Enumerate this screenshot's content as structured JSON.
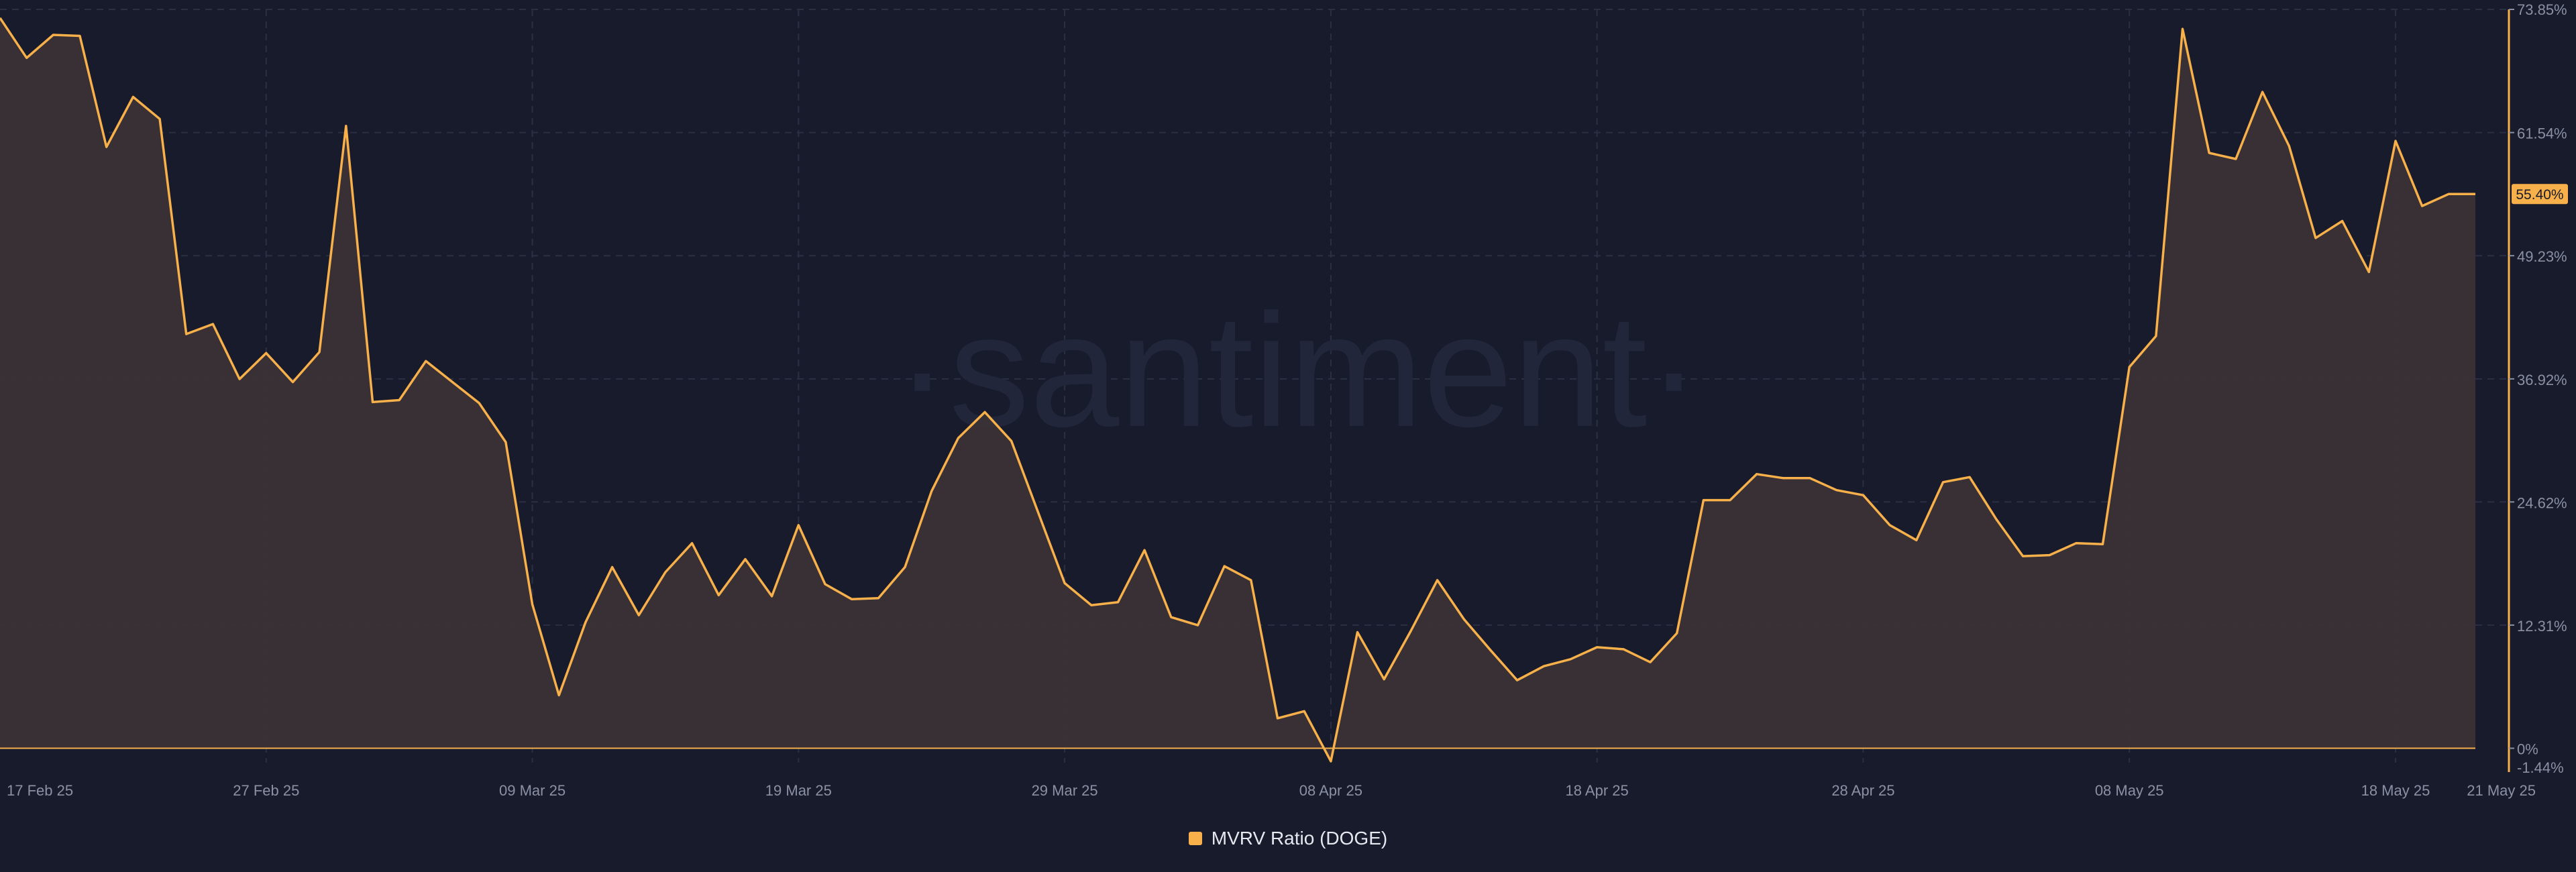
{
  "chart_data": {
    "type": "area",
    "watermark": "·santiment·",
    "x": [
      "2025-02-17",
      "2025-02-18",
      "2025-02-19",
      "2025-02-20",
      "2025-02-21",
      "2025-02-22",
      "2025-02-23",
      "2025-02-24",
      "2025-02-25",
      "2025-02-26",
      "2025-02-27",
      "2025-02-28",
      "2025-03-01",
      "2025-03-02",
      "2025-03-03",
      "2025-03-04",
      "2025-03-05",
      "2025-03-06",
      "2025-03-07",
      "2025-03-08",
      "2025-03-09",
      "2025-03-10",
      "2025-03-11",
      "2025-03-12",
      "2025-03-13",
      "2025-03-14",
      "2025-03-15",
      "2025-03-16",
      "2025-03-17",
      "2025-03-18",
      "2025-03-19",
      "2025-03-20",
      "2025-03-21",
      "2025-03-22",
      "2025-03-23",
      "2025-03-24",
      "2025-03-25",
      "2025-03-26",
      "2025-03-27",
      "2025-03-28",
      "2025-03-29",
      "2025-03-30",
      "2025-03-31",
      "2025-04-01",
      "2025-04-02",
      "2025-04-03",
      "2025-04-04",
      "2025-04-05",
      "2025-04-06",
      "2025-04-07",
      "2025-04-08",
      "2025-04-09",
      "2025-04-10",
      "2025-04-11",
      "2025-04-12",
      "2025-04-13",
      "2025-04-14",
      "2025-04-15",
      "2025-04-16",
      "2025-04-17",
      "2025-04-18",
      "2025-04-19",
      "2025-04-20",
      "2025-04-21",
      "2025-04-22",
      "2025-04-23",
      "2025-04-24",
      "2025-04-25",
      "2025-04-26",
      "2025-04-27",
      "2025-04-28",
      "2025-04-29",
      "2025-04-30",
      "2025-05-01",
      "2025-05-02",
      "2025-05-03",
      "2025-05-04",
      "2025-05-05",
      "2025-05-06",
      "2025-05-07",
      "2025-05-08",
      "2025-05-09",
      "2025-05-10",
      "2025-05-11",
      "2025-05-12",
      "2025-05-13",
      "2025-05-14",
      "2025-05-15",
      "2025-05-16",
      "2025-05-17",
      "2025-05-18",
      "2025-05-19",
      "2025-05-20",
      "2025-05-21"
    ],
    "series": [
      {
        "name": "MVRV Ratio (DOGE)",
        "color": "#f7b04a",
        "values": [
          73.0,
          69.0,
          71.3,
          71.2,
          60.1,
          65.1,
          62.9,
          41.4,
          42.4,
          36.9,
          39.5,
          36.6,
          39.6,
          62.2,
          34.6,
          34.8,
          38.7,
          36.6,
          34.5,
          30.6,
          14.4,
          5.3,
          12.6,
          18.1,
          13.3,
          17.6,
          20.5,
          15.3,
          18.9,
          15.2,
          22.3,
          16.4,
          14.9,
          15.0,
          18.1,
          25.7,
          31.0,
          33.6,
          30.7,
          23.6,
          16.5,
          14.3,
          14.6,
          19.8,
          13.1,
          12.3,
          18.2,
          16.8,
          3.0,
          3.7,
          -1.3,
          11.6,
          6.9,
          11.7,
          16.8,
          12.9,
          9.8,
          6.8,
          8.2,
          8.9,
          10.1,
          9.9,
          8.6,
          11.5,
          24.8,
          24.8,
          27.4,
          27.0,
          27.0,
          25.8,
          25.3,
          22.3,
          20.8,
          26.6,
          27.1,
          22.9,
          19.2,
          19.3,
          20.5,
          20.4,
          38.1,
          41.2,
          71.9,
          59.5,
          58.9,
          65.6,
          60.2,
          51.0,
          52.7,
          47.6,
          60.7,
          54.2,
          55.4,
          55.4
        ]
      }
    ],
    "y_axis": {
      "position": "right",
      "ylim": [
        -1.44,
        73.85
      ],
      "ticks": [
        0,
        12.31,
        24.62,
        36.92,
        49.23,
        61.54,
        73.85
      ],
      "tick_labels": [
        "0%",
        "12.31%",
        "24.62%",
        "36.92%",
        "49.23%",
        "61.54%",
        "73.85%"
      ],
      "min_label": "-1.44%",
      "current_value_label": "55.40%",
      "current_value": 55.4
    },
    "x_axis": {
      "tick_dates": [
        "2025-02-17",
        "2025-02-27",
        "2025-03-09",
        "2025-03-19",
        "2025-03-29",
        "2025-04-08",
        "2025-04-18",
        "2025-04-28",
        "2025-05-08",
        "2025-05-18",
        "2025-05-21"
      ],
      "tick_labels": [
        "17 Feb 25",
        "27 Feb 25",
        "09 Mar 25",
        "19 Mar 25",
        "29 Mar 25",
        "08 Apr 25",
        "18 Apr 25",
        "28 Apr 25",
        "08 May 25",
        "18 May 25",
        "21 May 25"
      ]
    },
    "grid": true,
    "legend_placement": "bottom-center",
    "colors": {
      "background": "#181b2c",
      "line": "#f7b04a",
      "area_fill": "#3a3235",
      "grid": "#2b2f43",
      "axis_text": "#8b90a3",
      "watermark": "#22263a"
    }
  }
}
